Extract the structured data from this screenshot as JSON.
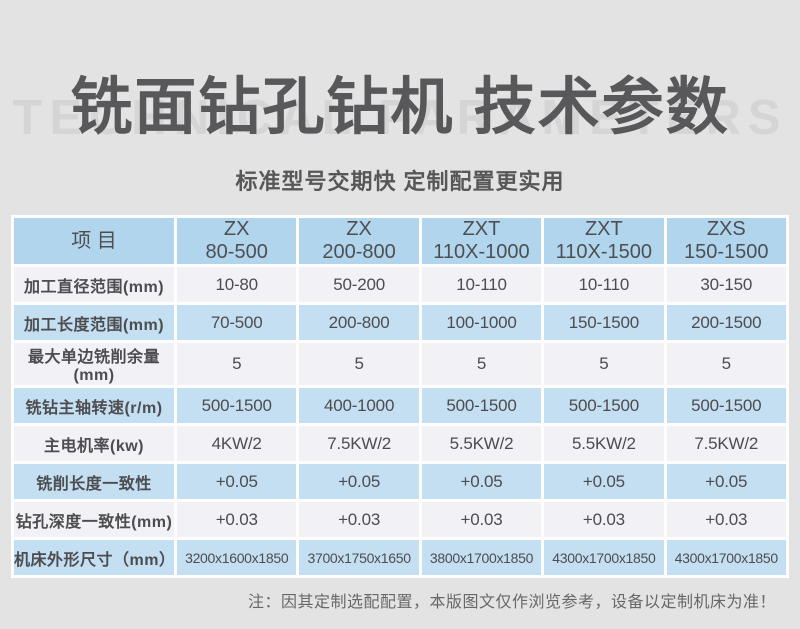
{
  "page": {
    "title": "铣面钻孔钻机 技术参数",
    "watermark": "TECHNICAL PARAMETERS",
    "subtitle": "标准型号交期快 定制配置更实用",
    "note": "注：因其定制选配配置，本版图文仅作浏览参考，设备以定制机床为准！"
  },
  "colors": {
    "page_bg": "#e3e3e3",
    "header_cell_bg": "#b1d5ed",
    "row_blue_bg": "#c4def2",
    "row_light_bg": "#f1f1f6",
    "grid_gap": "#fdfdfd",
    "title_text": "#58585a",
    "table_text": "#4d4d4f",
    "note_text": "#686868"
  },
  "table": {
    "columns": [
      {
        "line1": "项  目",
        "line2": ""
      },
      {
        "line1": "ZX",
        "line2": "80-500"
      },
      {
        "line1": "ZX",
        "line2": "200-800"
      },
      {
        "line1": "ZXT",
        "line2": "110X-1000"
      },
      {
        "line1": "ZXT",
        "line2": "110X-1500"
      },
      {
        "line1": "ZXS",
        "line2": "150-1500"
      }
    ],
    "rows": [
      {
        "label": "加工直径范围(mm)",
        "values": [
          "10-80",
          "50-200",
          "10-110",
          "10-110",
          "30-150"
        ]
      },
      {
        "label": "加工长度范围(mm)",
        "values": [
          "70-500",
          "200-800",
          "100-1000",
          "150-1500",
          "200-1500"
        ]
      },
      {
        "label": "最大单边铣削余量(mm)",
        "values": [
          "5",
          "5",
          "5",
          "5",
          "5"
        ]
      },
      {
        "label": "铣钻主轴转速(r/m)",
        "values": [
          "500-1500",
          "400-1000",
          "500-1500",
          "500-1500",
          "500-1500"
        ]
      },
      {
        "label": "主电机率(kw)",
        "values": [
          "4KW/2",
          "7.5KW/2",
          "5.5KW/2",
          "5.5KW/2",
          "7.5KW/2"
        ]
      },
      {
        "label": "铣削长度一致性",
        "values": [
          "+0.05",
          "+0.05",
          "+0.05",
          "+0.05",
          "+0.05"
        ]
      },
      {
        "label": "钻孔深度一致性(mm)",
        "values": [
          "+0.03",
          "+0.03",
          "+0.03",
          "+0.03",
          "+0.03"
        ]
      },
      {
        "label": "机床外形尺寸（mm）",
        "values": [
          "3200x1600x1850",
          "3700x1750x1650",
          "3800x1700x1850",
          "4300x1700x1850",
          "4300x1700x1850"
        ]
      }
    ]
  }
}
